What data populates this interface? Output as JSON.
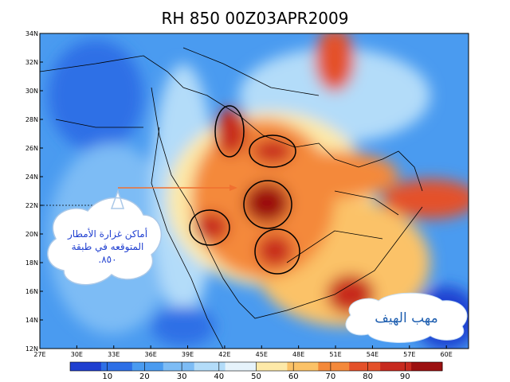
{
  "title": "RH 850 00Z03APR2009",
  "map": {
    "lon_range": [
      27,
      61.8
    ],
    "lat_range": [
      12,
      34
    ],
    "lat_ticks": [
      {
        "value": 12,
        "label": "12N"
      },
      {
        "value": 14,
        "label": "14N"
      },
      {
        "value": 16,
        "label": "16N"
      },
      {
        "value": 18,
        "label": "18N"
      },
      {
        "value": 20,
        "label": "20N"
      },
      {
        "value": 22,
        "label": "22N"
      },
      {
        "value": 24,
        "label": "24N"
      },
      {
        "value": 26,
        "label": "26N"
      },
      {
        "value": 28,
        "label": "28N"
      },
      {
        "value": 30,
        "label": "30N"
      },
      {
        "value": 32,
        "label": "32N"
      },
      {
        "value": 34,
        "label": "34N"
      }
    ],
    "lon_ticks": [
      {
        "value": 27,
        "label": "27E"
      },
      {
        "value": 30,
        "label": "30E"
      },
      {
        "value": 33,
        "label": "33E"
      },
      {
        "value": 36,
        "label": "36E"
      },
      {
        "value": 39,
        "label": "39E"
      },
      {
        "value": 42,
        "label": "42E"
      },
      {
        "value": 45,
        "label": "45E"
      },
      {
        "value": 48,
        "label": "48E"
      },
      {
        "value": 51,
        "label": "51E"
      },
      {
        "value": 54,
        "label": "54E"
      },
      {
        "value": 57,
        "label": "57E"
      },
      {
        "value": 60,
        "label": "60E"
      }
    ]
  },
  "colorbar": {
    "range": [
      0,
      100
    ],
    "ticks": [
      10,
      20,
      30,
      40,
      50,
      60,
      70,
      80,
      90
    ],
    "colors": [
      "#1f3fd0",
      "#2d6fe6",
      "#4a9bf0",
      "#7dbcf5",
      "#b3dcf9",
      "#e6f3fb",
      "#fde9a8",
      "#fbc267",
      "#f4893a",
      "#e4512a",
      "#c72a1f",
      "#9c1010"
    ]
  },
  "annotations": {
    "callout": [
      "أماكن غزارة الأمطار",
      "المتوقعه في طبقة",
      "٨٥٠."
    ],
    "logo": "مهب الهيف"
  }
}
